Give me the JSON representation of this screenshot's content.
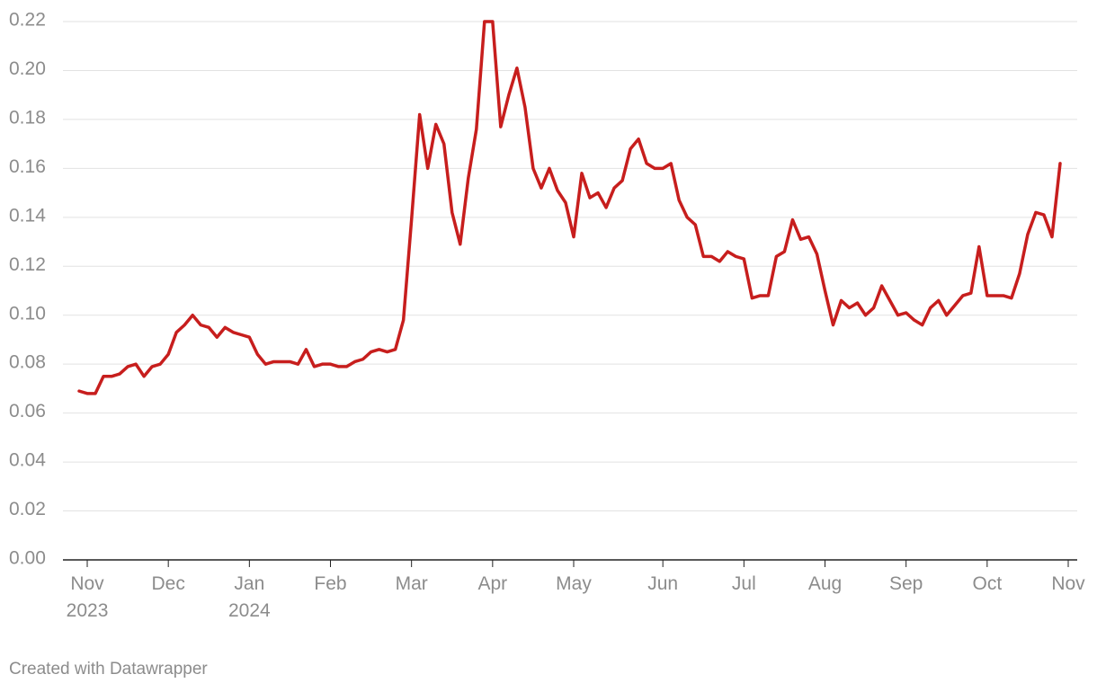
{
  "chart_data": {
    "type": "line",
    "categories": [
      null,
      "Nov 2023",
      null,
      null,
      null,
      null,
      null,
      null,
      null,
      null,
      null,
      "Dec",
      null,
      null,
      null,
      null,
      null,
      null,
      null,
      null,
      null,
      "Jan 2024",
      null,
      null,
      null,
      null,
      null,
      null,
      null,
      null,
      null,
      "Feb",
      null,
      null,
      null,
      null,
      null,
      null,
      null,
      null,
      null,
      "Mar",
      null,
      null,
      null,
      null,
      null,
      null,
      null,
      null,
      null,
      "Apr",
      null,
      null,
      null,
      null,
      null,
      null,
      null,
      null,
      null,
      "May",
      null,
      null,
      null,
      null,
      null,
      null,
      null,
      null,
      null,
      null,
      "Jun",
      null,
      null,
      null,
      null,
      null,
      null,
      null,
      null,
      null,
      "Jul",
      null,
      null,
      null,
      null,
      null,
      null,
      null,
      null,
      null,
      "Aug",
      null,
      null,
      null,
      null,
      null,
      null,
      null,
      null,
      null,
      "Sep",
      null,
      null,
      null,
      null,
      null,
      null,
      null,
      null,
      null,
      "Oct",
      null,
      null,
      null,
      null,
      null,
      null,
      null,
      null,
      null,
      "Nov"
    ],
    "values": [
      0.069,
      0.068,
      0.068,
      0.075,
      0.075,
      0.076,
      0.079,
      0.08,
      0.075,
      0.079,
      0.08,
      0.084,
      0.093,
      0.096,
      0.1,
      0.096,
      0.095,
      0.091,
      0.095,
      0.093,
      0.092,
      0.091,
      0.084,
      0.08,
      0.081,
      0.081,
      0.081,
      0.08,
      0.086,
      0.079,
      0.08,
      0.08,
      0.079,
      0.079,
      0.081,
      0.082,
      0.085,
      0.086,
      0.085,
      0.086,
      0.098,
      0.139,
      0.182,
      0.16,
      0.178,
      0.17,
      0.142,
      0.129,
      0.156,
      0.176,
      0.22,
      0.22,
      0.177,
      0.19,
      0.201,
      0.185,
      0.16,
      0.152,
      0.16,
      0.151,
      0.146,
      0.132,
      0.158,
      0.148,
      0.15,
      0.144,
      0.152,
      0.155,
      0.168,
      0.172,
      0.162,
      0.16,
      0.16,
      0.162,
      0.147,
      0.14,
      0.137,
      0.124,
      0.124,
      0.122,
      0.126,
      0.124,
      0.123,
      0.107,
      0.108,
      0.108,
      0.124,
      0.126,
      0.139,
      0.131,
      0.132,
      0.125,
      0.11,
      0.096,
      0.106,
      0.103,
      0.105,
      0.1,
      0.103,
      0.112,
      0.106,
      0.1,
      0.101,
      0.098,
      0.096,
      0.103,
      0.106,
      0.1,
      0.104,
      0.108,
      0.109,
      0.128,
      0.108,
      0.108,
      0.108,
      0.107,
      0.117,
      0.133,
      0.142,
      0.141,
      0.132,
      0.162,
      null
    ],
    "color": "#c71e1d",
    "ylim": [
      0,
      0.22
    ],
    "yticks": [
      {
        "value": 0,
        "label": "0.00"
      },
      {
        "value": 0.02,
        "label": "0.02"
      },
      {
        "value": 0.04,
        "label": "0.04"
      },
      {
        "value": 0.06,
        "label": "0.06"
      },
      {
        "value": 0.08,
        "label": "0.08"
      },
      {
        "value": 0.1,
        "label": "0.10"
      },
      {
        "value": 0.12,
        "label": "0.12"
      },
      {
        "value": 0.14,
        "label": "0.14"
      },
      {
        "value": 0.16,
        "label": "0.16"
      },
      {
        "value": 0.18,
        "label": "0.18"
      },
      {
        "value": 0.2,
        "label": "0.20"
      },
      {
        "value": 0.22,
        "label": "0.22"
      }
    ],
    "grid": true,
    "footer": "Created with Datawrapper"
  }
}
